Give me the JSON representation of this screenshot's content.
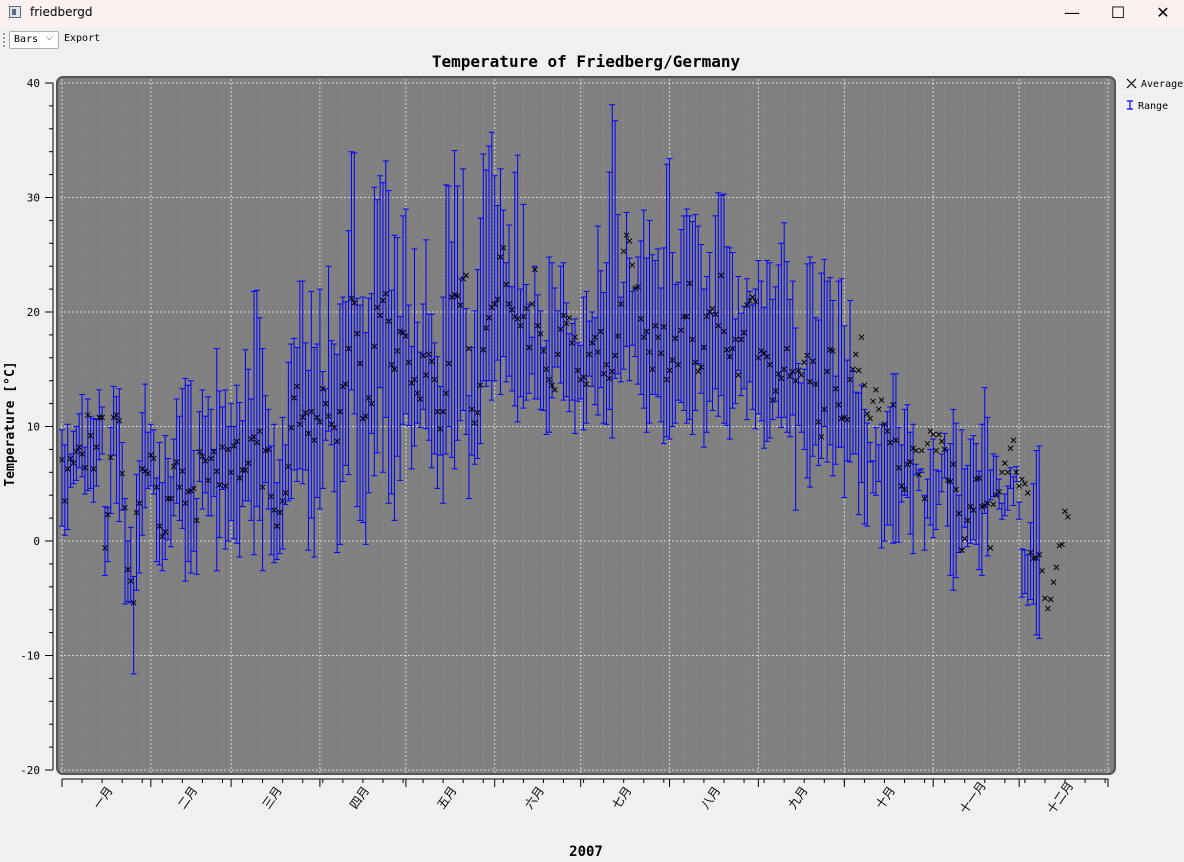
{
  "window": {
    "title": "friedbergd",
    "minimize_glyph": "—",
    "maximize_glyph": "☐",
    "close_glyph": "✕",
    "icon": "app-window-icon"
  },
  "toolbar": {
    "mode_select_value": "Bars",
    "mode_select_arrow": "⌵",
    "export_label": "Export"
  },
  "chart_data": {
    "type": "line",
    "title": "Temperature of Friedberg/Germany",
    "xlabel": "2007",
    "ylabel": "Temperature [°C]",
    "ylim": [
      -20,
      40
    ],
    "yticks": [
      -20,
      -10,
      0,
      10,
      20,
      30,
      40
    ],
    "xlim": [
      1,
      366
    ],
    "months": [
      "一月",
      "二月",
      "三月",
      "四月",
      "五月",
      "六月",
      "七月",
      "八月",
      "九月",
      "十月",
      "十一月",
      "十二月"
    ],
    "month_start_days": [
      1,
      32,
      60,
      91,
      121,
      152,
      182,
      213,
      244,
      274,
      305,
      335,
      366
    ],
    "grid": true,
    "legend_position": "right",
    "legend": [
      {
        "label": "Average",
        "symbol": "x",
        "color": "#000000"
      },
      {
        "label": "Range",
        "symbol": "interval",
        "color": "#0000ff"
      }
    ],
    "colors": {
      "canvas": "#808080",
      "range": "#0000ff",
      "average": "#000000",
      "grid": "#d8d8d8"
    },
    "series": [
      {
        "name": "Average",
        "values": [
          7.1,
          3.5,
          6.3,
          7.2,
          6.8,
          7.8,
          8.2,
          7.6,
          6.4,
          11.0,
          9.2,
          6.3,
          8.2,
          10.8,
          10.8,
          -0.6,
          2.3,
          7.3,
          10.8,
          11.0,
          10.5,
          5.9,
          2.9,
          -2.5,
          -3.5,
          -5.4,
          2.5,
          3.3,
          6.3,
          6.1,
          5.9,
          7.5,
          7.2,
          4.7,
          1.3,
          0.4,
          0.8,
          3.7,
          3.7,
          6.5,
          6.9,
          4.7,
          6.1,
          3.3,
          4.3,
          4.4,
          4.6,
          1.8,
          7.8,
          7.4,
          7.0,
          5.3,
          7.2,
          7.8,
          6.1,
          4.9,
          8.2,
          4.8,
          8.0,
          6.0,
          8.3,
          8.7,
          5.5,
          6.2,
          6.2,
          6.8,
          8.9,
          9.1,
          8.6,
          9.6,
          4.7,
          7.9,
          8.0,
          3.9,
          2.7,
          1.3,
          2.5,
          3.5,
          4.2,
          6.5,
          9.9,
          12.5,
          13.5,
          10.2,
          10.8,
          11.2,
          9.4,
          11.3,
          8.8,
          10.8,
          10.4,
          13.3,
          12.0,
          10.9,
          10.2,
          9.9,
          8.7,
          11.3,
          13.5,
          13.7,
          16.8,
          21.2,
          20.8,
          18.1,
          15.5,
          10.7,
          10.9,
          12.5,
          12.0,
          17.0,
          20.4,
          19.7,
          21.0,
          21.6,
          19.2,
          15.4,
          15.0,
          16.6,
          18.3,
          18.2,
          17.9,
          15.6,
          13.8,
          14.1,
          12.9,
          12.4,
          16.2,
          14.5,
          16.3,
          15.7,
          14.1,
          11.3,
          9.8,
          11.3,
          12.9,
          15.5,
          21.3,
          21.5,
          21.4,
          20.6,
          22.9,
          23.2,
          16.8,
          11.5,
          10.3,
          11.2,
          13.6,
          16.7,
          18.6,
          19.5,
          20.4,
          20.7,
          21.1,
          24.8,
          25.6,
          22.4,
          20.7,
          20.2,
          19.6,
          19.4,
          18.8,
          19.6,
          20.3,
          16.9,
          20.7,
          23.7,
          18.8,
          18.1,
          16.6,
          15.0,
          14.1,
          13.6,
          13.2,
          16.3,
          18.5,
          19.7,
          19.0,
          19.5,
          17.3,
          17.8,
          14.9,
          14.1,
          14.3,
          13.7,
          16.3,
          17.3,
          17.8,
          16.5,
          18.3,
          14.6,
          15.4,
          14.2,
          14.8,
          16.2,
          17.9,
          20.7,
          25.3,
          26.7,
          26.2,
          24.1,
          22.1,
          22.2,
          19.4,
          17.8,
          18.3,
          16.5,
          15.0,
          18.8,
          17.8,
          16.4,
          18.7,
          14.1,
          14.9,
          15.8,
          17.7,
          15.4,
          18.4,
          19.6,
          19.6,
          22.5,
          17.6,
          15.6,
          14.8,
          15.2,
          16.9,
          19.6,
          20.0,
          20.3,
          19.8,
          18.8,
          23.2,
          18.3,
          16.7,
          16.1,
          16.8,
          17.6,
          14.5,
          17.6,
          18.2,
          20.6,
          21.0,
          21.3,
          20.9,
          16.0,
          16.6,
          16.4,
          16.1,
          15.4,
          12.3,
          13.1,
          14.6,
          14.2,
          15.0,
          16.8,
          14.4,
          14.8,
          14.0,
          14.9,
          14.5,
          15.6,
          16.2,
          13.9,
          15.7,
          13.7,
          10.4,
          9.1,
          11.5,
          14.8,
          16.7,
          16.6,
          13.3,
          11.9,
          10.7,
          10.8,
          10.6,
          14.1,
          15.0,
          16.3,
          14.9,
          17.8,
          13.6,
          11.1,
          10.7,
          12.2,
          13.2,
          11.5,
          12.3,
          10.2,
          9.6,
          8.6,
          11.9,
          8.8,
          6.4,
          4.8,
          4.5,
          6.7,
          6.9,
          8.1,
          7.9,
          5.8,
          7.9,
          3.7,
          8.5,
          9.6,
          9.3,
          7.9,
          9.3,
          8.7,
          8.0,
          5.3,
          5.2,
          6.7,
          4.5,
          2.4,
          -0.8,
          0.2,
          1.8,
          3.0,
          2.7,
          5.4,
          5.5,
          3.0,
          3.1,
          3.3,
          -0.6,
          3.2,
          4.0,
          4.3,
          6.0,
          6.8,
          6.0,
          8.1,
          8.8,
          6.0,
          4.8,
          5.4,
          5.0,
          4.2,
          -1.0,
          -1.5,
          -1.5,
          -1.2,
          -2.6,
          -5.0,
          -5.9,
          -5.1,
          -3.6,
          -2.3,
          -0.4,
          -0.3,
          2.6,
          2.1
        ]
      },
      {
        "name": "Range",
        "low": [
          1.3,
          0.5,
          1.0,
          4.7,
          5.0,
          5.3,
          6.4,
          5.6,
          4.1,
          4.4,
          4.6,
          3.4,
          4.8,
          7.1,
          7.6,
          -3.0,
          -1.8,
          2.4,
          7.5,
          3.3,
          1.7,
          2.7,
          -5.5,
          -5.3,
          -5.4,
          -11.6,
          -4.3,
          -2.8,
          0.5,
          2.9,
          4.6,
          4.8,
          4.1,
          -1.8,
          -2.1,
          -2.6,
          -1.6,
          0.1,
          -0.5,
          2.2,
          3.3,
          1.8,
          1.1,
          -3.5,
          -1.8,
          -2.8,
          -0.9,
          -2.9,
          5.2,
          2.8,
          4.2,
          2.2,
          2.2,
          3.9,
          -2.6,
          0.3,
          4.5,
          -0.7,
          0.0,
          1.8,
          0.2,
          -0.2,
          -1.4,
          3.0,
          3.5,
          3.5,
          1.8,
          -1.2,
          3.0,
          1.8,
          -2.6,
          5.1,
          2.8,
          -1.2,
          -1.9,
          -1.6,
          -1.1,
          -0.7,
          3.2,
          3.5,
          3.7,
          6.2,
          5.2,
          6.3,
          5.0,
          6.2,
          -0.8,
          2.0,
          -1.4,
          3.8,
          2.8,
          4.6,
          8.8,
          9.6,
          8.4,
          4.3,
          -1.0,
          -0.3,
          5.2,
          6.6,
          5.8,
          13.2,
          11.1,
          3.0,
          1.8,
          1.6,
          -0.3,
          4.2,
          9.4,
          5.7,
          7.7,
          13.4,
          6.0,
          10.8,
          3.3,
          4.1,
          1.8,
          7.4,
          5.3,
          10.2,
          11.1,
          10.1,
          6.3,
          8.3,
          10.3,
          9.9,
          11.5,
          9.8,
          8.8,
          6.4,
          7.6,
          4.6,
          7.5,
          3.3,
          7.6,
          10.0,
          7.3,
          6.3,
          8.8,
          10.5,
          11.4,
          9.3,
          3.7,
          7.5,
          6.7,
          7.2,
          8.5,
          14.0,
          13.5,
          14.0,
          12.3,
          14.0,
          15.8,
          12.8,
          16.1,
          13.9,
          14.4,
          13.1,
          11.8,
          10.4,
          12.6,
          11.6,
          12.3,
          12.9,
          14.6,
          12.4,
          12.4,
          11.5,
          11.4,
          9.3,
          9.5,
          12.5,
          15.2,
          15.2,
          13.8,
          12.3,
          12.6,
          11.3,
          12.3,
          9.4,
          12.2,
          12.4,
          9.7,
          10.3,
          14.4,
          13.5,
          11.9,
          11.0,
          13.4,
          10.3,
          10.2,
          11.5,
          9.0,
          14.2,
          14.6,
          13.9,
          15.0,
          17.0,
          14.0,
          17.1,
          16.1,
          13.7,
          12.8,
          11.6,
          9.5,
          10.3,
          12.8,
          12.8,
          12.6,
          10.4,
          8.5,
          9.1,
          8.9,
          10.0,
          10.3,
          12.3,
          12.1,
          11.4,
          10.3,
          10.6,
          9.3,
          11.4,
          15.5,
          12.9,
          8.2,
          9.5,
          12.2,
          11.4,
          13.3,
          10.9,
          12.7,
          10.3,
          10.1,
          8.9,
          11.6,
          12.0,
          14.9,
          12.7,
          13.3,
          10.6,
          13.9,
          11.5,
          9.8,
          11.1,
          10.5,
          8.1,
          8.7,
          9.0,
          10.6,
          12.2,
          10.8,
          9.9,
          10.8,
          9.5,
          9.1,
          11.0,
          2.7,
          10.1,
          9.5,
          8.0,
          5.5,
          4.7,
          7.4,
          8.4,
          6.6,
          7.2,
          10.0,
          6.9,
          8.4,
          5.7,
          6.7,
          8.2,
          8.2,
          3.8,
          7.0,
          6.9,
          7.6,
          7.6,
          2.3,
          5.1,
          1.5,
          1.3,
          6.9,
          4.2,
          4.0,
          5.2,
          -0.6,
          0.0,
          1.4,
          1.4,
          -0.2,
          -0.1,
          -0.1,
          3.4,
          4.0,
          3.8,
          0.6,
          -1.1,
          5.8,
          4.4,
          6.3,
          -0.8,
          5.4,
          1.4,
          0.3,
          1.0,
          3.2,
          4.3,
          5.5,
          1.3,
          -3.0,
          -4.3,
          -3.2,
          -1.0,
          -0.7,
          1.2,
          -0.5,
          -0.2,
          0.1,
          -0.3,
          -2.5,
          -3.0,
          2.4,
          -1.3,
          3.6,
          3.9,
          4.0,
          2.8,
          3.3,
          4.1,
          2.7,
          4.6,
          3.1,
          5.2,
          1.9,
          -4.9,
          -4.6,
          -5.6,
          -5.1,
          -5.5,
          -8.2,
          -8.5,
          -7.5,
          -5.2,
          -4.8,
          -3.5,
          -2.9,
          0.7,
          -1.7
        ],
        "high": [
          9.7,
          8.4,
          10.2,
          7.6,
          9.6,
          10.0,
          11.1,
          12.8,
          8.2,
          12.4,
          10.9,
          10.7,
          10.6,
          13.2,
          11.7,
          3.0,
          2.9,
          9.9,
          13.5,
          12.6,
          13.3,
          8.6,
          3.7,
          0.0,
          1.2,
          -3.1,
          5.8,
          7.0,
          11.2,
          13.7,
          9.5,
          10.2,
          9.7,
          5.5,
          8.6,
          5.1,
          9.2,
          7.2,
          5.6,
          8.9,
          12.4,
          10.9,
          13.3,
          14.2,
          13.6,
          14.0,
          7.9,
          3.7,
          11.3,
          13.2,
          10.9,
          12.6,
          11.5,
          8.0,
          16.8,
          13.1,
          11.7,
          13.2,
          10.0,
          12.0,
          10.0,
          13.6,
          12.1,
          10.5,
          16.7,
          15.0,
          12.4,
          21.8,
          21.9,
          19.5,
          16.8,
          12.7,
          11.5,
          8.3,
          10.2,
          5.1,
          7.1,
          10.8,
          8.4,
          15.6,
          17.2,
          17.7,
          16.9,
          22.7,
          22.7,
          17.3,
          14.9,
          21.8,
          16.9,
          17.2,
          22.0,
          14.8,
          13.3,
          24.0,
          17.5,
          17.2,
          16.3,
          20.7,
          21.3,
          20.9,
          27.1,
          34.0,
          33.9,
          21.2,
          20.6,
          21.3,
          18.2,
          21.2,
          21.6,
          30.9,
          29.8,
          31.9,
          31.3,
          33.2,
          30.6,
          21.9,
          26.7,
          26.5,
          19.6,
          28.4,
          29.0,
          20.6,
          17.0,
          25.5,
          19.1,
          16.5,
          20.7,
          26.3,
          19.8,
          19.8,
          17.3,
          16.1,
          13.5,
          21.3,
          31.1,
          31.0,
          26.1,
          34.1,
          31.0,
          22.9,
          32.5,
          20.3,
          12.7,
          16.9,
          20.1,
          23.7,
          28.2,
          33.8,
          32.4,
          34.5,
          35.7,
          31.9,
          29.3,
          32.5,
          28.9,
          24.3,
          27.6,
          22.2,
          32.2,
          33.7,
          22.0,
          29.4,
          22.4,
          20.7,
          17.8,
          24.0,
          21.5,
          20.1,
          16.9,
          17.5,
          24.8,
          24.3,
          22.1,
          20.1,
          24.0,
          24.3,
          20.8,
          18.1,
          19.0,
          19.4,
          17.3,
          17.1,
          21.3,
          21.8,
          19.2,
          20.0,
          19.5,
          27.5,
          23.6,
          21.7,
          24.3,
          32.2,
          38.1,
          36.7,
          28.5,
          21.3,
          22.6,
          28.7,
          24.7,
          21.8,
          22.1,
          24.8,
          26.2,
          28.9,
          24.7,
          28.0,
          25.0,
          24.5,
          25.5,
          22.1,
          25.6,
          32.9,
          33.4,
          25.2,
          22.4,
          22.6,
          27.2,
          28.4,
          29.0,
          28.4,
          27.9,
          28.5,
          27.5,
          25.9,
          22.0,
          23.1,
          25.2,
          19.9,
          28.4,
          30.4,
          30.2,
          30.3,
          25.7,
          25.6,
          25.2,
          19.4,
          23.1,
          19.9,
          20.5,
          22.9,
          21.8,
          20.6,
          22.0,
          24.5,
          22.7,
          20.4,
          24.5,
          24.3,
          21.1,
          22.2,
          24.1,
          26.0,
          27.8,
          24.4,
          21.1,
          22.7,
          18.6,
          15.5,
          13.8,
          15.0,
          24.2,
          24.8,
          24.3,
          19.5,
          19.3,
          23.4,
          24.6,
          22.7,
          23.0,
          21.0,
          14.4,
          22.7,
          22.9,
          18.8,
          15.8,
          21.0,
          14.8,
          13.0,
          12.9,
          13.6,
          11.5,
          10.3,
          8.6,
          7.0,
          9.9,
          8.4,
          10.2,
          10.2,
          11.3,
          11.7,
          14.6,
          14.6,
          9.9,
          8.4,
          11.5,
          11.9,
          9.5,
          10.2,
          6.7,
          6.2,
          6.0,
          4.0,
          2.0,
          8.0,
          8.9,
          6.2,
          6.1,
          7.6,
          9.4,
          8.0,
          8.5,
          11.5,
          10.3,
          4.0,
          9.7,
          6.3,
          6.6,
          8.9,
          9.2,
          8.5,
          6.1,
          10.2,
          13.4,
          10.8,
          6.2,
          7.6,
          7.4,
          5.4,
          1.9,
          2.2,
          4.8,
          6.4,
          5.6,
          6.5,
          3.4,
          -0.7,
          -0.8,
          -1.2,
          1.6,
          5.0,
          7.9,
          8.3
        ]
      }
    ]
  }
}
